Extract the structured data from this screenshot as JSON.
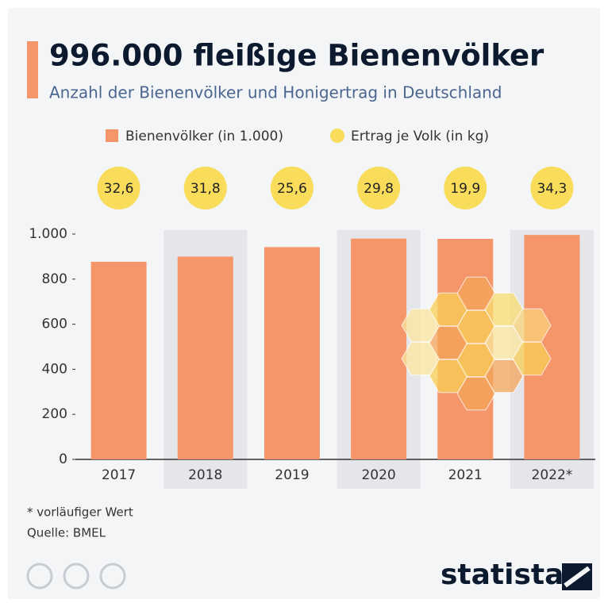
{
  "chart_data": {
    "type": "bar",
    "title": "996.000 fleißige Bienenvölker",
    "subtitle": "Anzahl der Bienenvölker und Honigertrag in Deutschland",
    "categories": [
      "2017",
      "2018",
      "2019",
      "2020",
      "2021",
      "2022*"
    ],
    "series": [
      {
        "name": "Bienenvölker (in 1.000)",
        "color": "#f5956a",
        "values": [
          877,
          900,
          942,
          980,
          979,
          996
        ]
      },
      {
        "name": "Ertrag je Volk (in kg)",
        "color": "#f8dc5a",
        "values": [
          32.6,
          31.8,
          25.6,
          29.8,
          19.9,
          34.3
        ],
        "value_labels": [
          "32,6",
          "31,8",
          "25,6",
          "29,8",
          "19,9",
          "34,3"
        ]
      }
    ],
    "ylim": [
      0,
      1000
    ],
    "yticks": [
      0,
      200,
      400,
      600,
      800,
      {
        "value": 1000,
        "label": "1.000"
      }
    ],
    "note": "* vorläufiger Wert",
    "source": "Quelle: BMEL",
    "brand": "statista"
  }
}
